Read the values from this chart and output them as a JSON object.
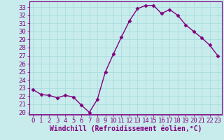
{
  "x": [
    0,
    1,
    2,
    3,
    4,
    5,
    6,
    7,
    8,
    9,
    10,
    11,
    12,
    13,
    14,
    15,
    16,
    17,
    18,
    19,
    20,
    21,
    22,
    23
  ],
  "y": [
    22.8,
    22.2,
    22.1,
    21.8,
    22.1,
    21.9,
    20.9,
    20.0,
    21.6,
    25.0,
    27.2,
    29.3,
    31.3,
    32.8,
    33.2,
    33.2,
    32.2,
    32.7,
    32.0,
    30.8,
    30.0,
    29.2,
    28.3,
    27.0
  ],
  "line_color": "#800080",
  "marker": "D",
  "marker_size": 2.5,
  "linewidth": 1.0,
  "bg_color": "#c8ecec",
  "grid_color": "#aadddd",
  "xlabel": "Windchill (Refroidissement éolien,°C)",
  "xlabel_color": "#800080",
  "xlabel_fontsize": 7,
  "ylim": [
    19.7,
    33.7
  ],
  "xlim": [
    -0.5,
    23.5
  ],
  "yticks": [
    20,
    21,
    22,
    23,
    24,
    25,
    26,
    27,
    28,
    29,
    30,
    31,
    32,
    33
  ],
  "xticks": [
    0,
    1,
    2,
    3,
    4,
    5,
    6,
    7,
    8,
    9,
    10,
    11,
    12,
    13,
    14,
    15,
    16,
    17,
    18,
    19,
    20,
    21,
    22,
    23
  ],
  "tick_fontsize": 6.5,
  "tick_color": "#800080",
  "spine_color": "#800080",
  "bottom_spine_color": "#800080"
}
